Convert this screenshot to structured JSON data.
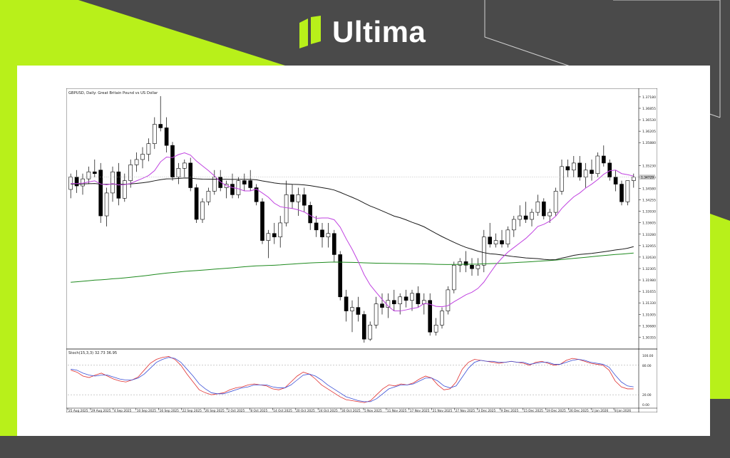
{
  "brand": {
    "name": "Ultima",
    "colors": {
      "accent": "#b8f01a",
      "background": "#4a4a4a",
      "text": "#ffffff"
    },
    "logo_icon": "ultima-logo-icon"
  },
  "chart_data": [
    {
      "type": "candlestick",
      "title": "GBPUSD, Daily: Great Britain Pound vs US Dollar",
      "price_axis_labels": [
        "1.37180",
        "1.36855",
        "1.36530",
        "1.36205",
        "1.35880",
        "1.35230",
        "1.34905",
        "1.34580",
        "1.34255",
        "1.33930",
        "1.33605",
        "1.33280",
        "1.32955",
        "1.32630",
        "1.32305",
        "1.31980",
        "1.31655",
        "1.31330",
        "1.31005",
        "1.30680",
        "1.30355"
      ],
      "price_tags": [
        "1.34729"
      ],
      "date_labels": [
        "25 Aug 2025",
        "29 Aug 2025",
        "4 Sep 2025",
        "10 Sep 2025",
        "16 Sep 2025",
        "22 Sep 2025",
        "26 Sep 2025",
        "2 Oct 2025",
        "8 Oct 2025",
        "14 Oct 2025",
        "20 Oct 2025",
        "24 Oct 2025",
        "30 Oct 2025",
        "5 Nov 2025",
        "11 Nov 2025",
        "17 Nov 2025",
        "21 Nov 2025",
        "27 Nov 2025",
        "3 Dec 2025",
        "9 Dec 2025",
        "15 Dec 2025",
        "19 Dec 2025",
        "26 Dec 2025",
        "2 Jan 2026",
        "8 Jan 2026"
      ],
      "ylim": [
        1.301,
        1.373
      ],
      "candles": [
        [
          1.3455,
          1.35,
          1.343,
          1.349
        ],
        [
          1.349,
          1.351,
          1.3445,
          1.3465
        ],
        [
          1.3465,
          1.35,
          1.344,
          1.3485
        ],
        [
          1.3485,
          1.352,
          1.347,
          1.3505
        ],
        [
          1.3505,
          1.354,
          1.349,
          1.35
        ],
        [
          1.351,
          1.353,
          1.336,
          1.338
        ],
        [
          1.338,
          1.346,
          1.335,
          1.3445
        ],
        [
          1.3445,
          1.352,
          1.342,
          1.3505
        ],
        [
          1.3505,
          1.353,
          1.341,
          1.343
        ],
        [
          1.343,
          1.35,
          1.342,
          1.348
        ],
        [
          1.348,
          1.354,
          1.346,
          1.3525
        ],
        [
          1.3525,
          1.356,
          1.3505,
          1.354
        ],
        [
          1.354,
          1.3575,
          1.3515,
          1.3555
        ],
        [
          1.3555,
          1.36,
          1.3535,
          1.3585
        ],
        [
          1.3585,
          1.366,
          1.357,
          1.364
        ],
        [
          1.364,
          1.372,
          1.362,
          1.363
        ],
        [
          1.363,
          1.366,
          1.356,
          1.358
        ],
        [
          1.358,
          1.359,
          1.348,
          1.349
        ],
        [
          1.349,
          1.353,
          1.347,
          1.3515
        ],
        [
          1.3515,
          1.354,
          1.349,
          1.353
        ],
        [
          1.353,
          1.3545,
          1.345,
          1.346
        ],
        [
          1.346,
          1.347,
          1.336,
          1.337
        ],
        [
          1.337,
          1.343,
          1.336,
          1.342
        ],
        [
          1.342,
          1.346,
          1.341,
          1.345
        ],
        [
          1.345,
          1.351,
          1.344,
          1.349
        ],
        [
          1.349,
          1.351,
          1.345,
          1.346
        ],
        [
          1.346,
          1.348,
          1.343,
          1.347
        ],
        [
          1.347,
          1.35,
          1.343,
          1.344
        ],
        [
          1.344,
          1.349,
          1.343,
          1.348
        ],
        [
          1.348,
          1.35,
          1.345,
          1.347
        ],
        [
          1.348,
          1.351,
          1.345,
          1.346
        ],
        [
          1.346,
          1.347,
          1.341,
          1.342
        ],
        [
          1.342,
          1.343,
          1.33,
          1.331
        ],
        [
          1.331,
          1.334,
          1.326,
          1.333
        ],
        [
          1.333,
          1.336,
          1.33,
          1.332
        ],
        [
          1.332,
          1.338,
          1.329,
          1.336
        ],
        [
          1.336,
          1.348,
          1.335,
          1.344
        ],
        [
          1.344,
          1.347,
          1.34,
          1.342
        ],
        [
          1.342,
          1.346,
          1.338,
          1.344
        ],
        [
          1.344,
          1.346,
          1.339,
          1.341
        ],
        [
          1.341,
          1.342,
          1.334,
          1.336
        ],
        [
          1.336,
          1.338,
          1.332,
          1.334
        ],
        [
          1.334,
          1.336,
          1.329,
          1.332
        ],
        [
          1.332,
          1.336,
          1.329,
          1.333
        ],
        [
          1.333,
          1.334,
          1.325,
          1.327
        ],
        [
          1.327,
          1.328,
          1.314,
          1.315
        ],
        [
          1.315,
          1.317,
          1.308,
          1.311
        ],
        [
          1.311,
          1.314,
          1.305,
          1.312
        ],
        [
          1.312,
          1.315,
          1.308,
          1.31
        ],
        [
          1.31,
          1.311,
          1.302,
          1.303
        ],
        [
          1.303,
          1.308,
          1.3025,
          1.307
        ],
        [
          1.307,
          1.315,
          1.306,
          1.313
        ],
        [
          1.313,
          1.316,
          1.31,
          1.312
        ],
        [
          1.312,
          1.316,
          1.309,
          1.314
        ],
        [
          1.314,
          1.317,
          1.311,
          1.313
        ],
        [
          1.313,
          1.316,
          1.31,
          1.315
        ],
        [
          1.315,
          1.317,
          1.312,
          1.314
        ],
        [
          1.314,
          1.317,
          1.311,
          1.316
        ],
        [
          1.316,
          1.318,
          1.312,
          1.313
        ],
        [
          1.313,
          1.316,
          1.31,
          1.314
        ],
        [
          1.314,
          1.316,
          1.304,
          1.305
        ],
        [
          1.305,
          1.309,
          1.304,
          1.307
        ],
        [
          1.307,
          1.312,
          1.306,
          1.311
        ],
        [
          1.311,
          1.318,
          1.31,
          1.317
        ],
        [
          1.317,
          1.325,
          1.316,
          1.324
        ],
        [
          1.324,
          1.326,
          1.322,
          1.325
        ],
        [
          1.325,
          1.328,
          1.322,
          1.324
        ],
        [
          1.324,
          1.326,
          1.321,
          1.323
        ],
        [
          1.323,
          1.326,
          1.321,
          1.324
        ],
        [
          1.324,
          1.334,
          1.322,
          1.332
        ],
        [
          1.332,
          1.336,
          1.329,
          1.33
        ],
        [
          1.33,
          1.333,
          1.329,
          1.331
        ],
        [
          1.331,
          1.334,
          1.329,
          1.33
        ],
        [
          1.33,
          1.335,
          1.329,
          1.334
        ],
        [
          1.334,
          1.338,
          1.332,
          1.337
        ],
        [
          1.337,
          1.341,
          1.335,
          1.338
        ],
        [
          1.338,
          1.342,
          1.336,
          1.337
        ],
        [
          1.337,
          1.34,
          1.335,
          1.339
        ],
        [
          1.339,
          1.344,
          1.338,
          1.342
        ],
        [
          1.342,
          1.343,
          1.337,
          1.338
        ],
        [
          1.338,
          1.34,
          1.336,
          1.339
        ],
        [
          1.339,
          1.346,
          1.338,
          1.345
        ],
        [
          1.345,
          1.354,
          1.344,
          1.352
        ],
        [
          1.352,
          1.354,
          1.349,
          1.351
        ],
        [
          1.351,
          1.355,
          1.349,
          1.353
        ],
        [
          1.353,
          1.355,
          1.348,
          1.349
        ],
        [
          1.349,
          1.353,
          1.346,
          1.351
        ],
        [
          1.351,
          1.354,
          1.348,
          1.35
        ],
        [
          1.35,
          1.356,
          1.349,
          1.355
        ],
        [
          1.355,
          1.358,
          1.352,
          1.353
        ],
        [
          1.353,
          1.354,
          1.348,
          1.349
        ],
        [
          1.349,
          1.351,
          1.345,
          1.347
        ],
        [
          1.347,
          1.348,
          1.341,
          1.342
        ],
        [
          1.342,
          1.348,
          1.341,
          1.348
        ],
        [
          1.348,
          1.35,
          1.346,
          1.349
        ]
      ],
      "ma_fast_color": "#c042e0",
      "ma_mid_color": "#1a1a1a",
      "ma_slow_color": "#1e8a1e",
      "candle_colors": {
        "bull": "#ffffff",
        "bear": "#000000",
        "outline": "#000000"
      }
    },
    {
      "type": "line",
      "title": "Stoch(15,3,3) 32.73 36.95",
      "ylim": [
        0,
        100
      ],
      "levels": [
        80,
        20
      ],
      "axis_labels": [
        "100.00",
        "80.00",
        "20.00",
        "0.00"
      ],
      "series": [
        {
          "color": "#e03030",
          "values": [
            70,
            66,
            58,
            55,
            60,
            64,
            58,
            52,
            48,
            46,
            50,
            56,
            70,
            84,
            92,
            96,
            98,
            92,
            80,
            62,
            46,
            30,
            24,
            20,
            22,
            24,
            30,
            34,
            36,
            40,
            42,
            40,
            38,
            32,
            30,
            34,
            46,
            58,
            66,
            62,
            52,
            40,
            32,
            24,
            16,
            10,
            8,
            6,
            4,
            8,
            20,
            32,
            40,
            38,
            42,
            40,
            44,
            52,
            58,
            54,
            40,
            30,
            32,
            46,
            72,
            86,
            92,
            90,
            88,
            86,
            84,
            86,
            88,
            86,
            84,
            80,
            86,
            88,
            84,
            80,
            82,
            90,
            94,
            92,
            88,
            84,
            82,
            80,
            70,
            48,
            36,
            32,
            32
          ]
        },
        {
          "color": "#3a4fd6",
          "values": [
            72,
            70,
            64,
            60,
            58,
            60,
            60,
            56,
            52,
            50,
            50,
            54,
            62,
            74,
            86,
            92,
            96,
            94,
            86,
            72,
            58,
            42,
            32,
            24,
            22,
            22,
            26,
            30,
            34,
            36,
            40,
            40,
            40,
            36,
            34,
            34,
            40,
            50,
            60,
            62,
            58,
            50,
            40,
            32,
            24,
            16,
            12,
            8,
            6,
            6,
            12,
            22,
            32,
            36,
            40,
            40,
            42,
            48,
            54,
            54,
            48,
            38,
            34,
            38,
            56,
            74,
            86,
            90,
            88,
            88,
            86,
            86,
            88,
            86,
            86,
            82,
            84,
            86,
            86,
            82,
            82,
            86,
            90,
            92,
            90,
            86,
            84,
            82,
            76,
            60,
            46,
            38,
            36
          ]
        }
      ]
    }
  ]
}
